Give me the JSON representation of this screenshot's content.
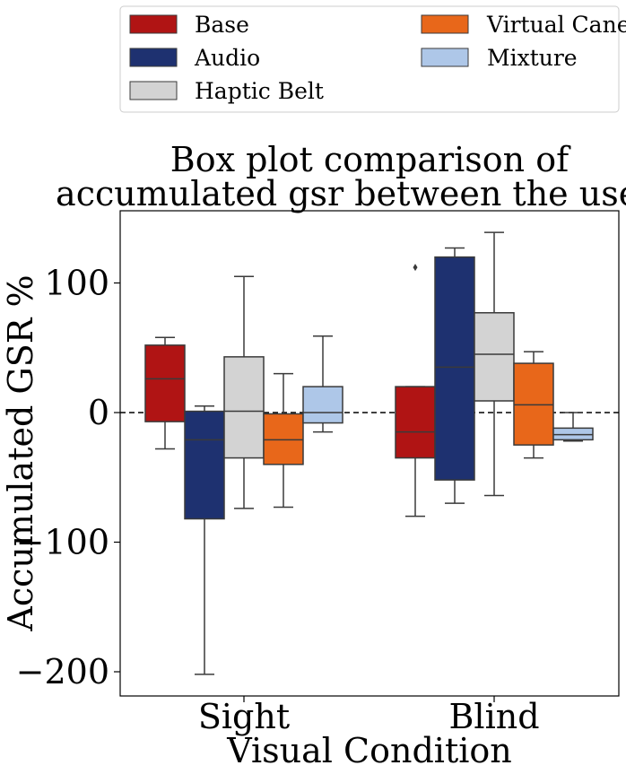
{
  "chart_data": {
    "type": "box",
    "title": [
      "Box plot comparison of",
      "accumulated gsr between the users."
    ],
    "xlabel": "Visual Condition",
    "ylabel": "Accumulated GSR %",
    "categories": [
      "Sight",
      "Blind"
    ],
    "ylim": [
      -220,
      157
    ],
    "yticks": [
      100,
      0,
      -100,
      -200
    ],
    "ytick_labels": [
      "100",
      "0",
      "−100",
      "−200"
    ],
    "grid": false,
    "reference_line": {
      "y": 0,
      "style": "dashed"
    },
    "legend": {
      "placement": "top",
      "columns": 2
    },
    "series": [
      {
        "name": "Base",
        "color": "#b01414",
        "boxes": [
          {
            "whisker_low": -28,
            "q1": -7,
            "median": 26,
            "q3": 52,
            "whisker_high": 58,
            "outliers": []
          },
          {
            "whisker_low": -80,
            "q1": -35,
            "median": -15,
            "q3": 20,
            "whisker_high": 20,
            "outliers": [
              112
            ]
          }
        ]
      },
      {
        "name": "Audio",
        "color": "#1e3170",
        "boxes": [
          {
            "whisker_low": -202,
            "q1": -82,
            "median": -21,
            "q3": 1,
            "whisker_high": 5,
            "outliers": []
          },
          {
            "whisker_low": -70,
            "q1": -52,
            "median": 35,
            "q3": 120,
            "whisker_high": 127,
            "outliers": []
          }
        ]
      },
      {
        "name": "Haptic Belt",
        "color": "#d3d3d3",
        "boxes": [
          {
            "whisker_low": -74,
            "q1": -35,
            "median": 1,
            "q3": 43,
            "whisker_high": 105,
            "outliers": []
          },
          {
            "whisker_low": -64,
            "q1": 9,
            "median": 45,
            "q3": 77,
            "whisker_high": 139,
            "outliers": []
          }
        ]
      },
      {
        "name": "Virtual Cane",
        "color": "#e8671a",
        "boxes": [
          {
            "whisker_low": -73,
            "q1": -40,
            "median": -21,
            "q3": -1,
            "whisker_high": 30,
            "outliers": []
          },
          {
            "whisker_low": -35,
            "q1": -25,
            "median": 6,
            "q3": 38,
            "whisker_high": 47,
            "outliers": []
          }
        ]
      },
      {
        "name": "Mixture",
        "color": "#aec7e8",
        "boxes": [
          {
            "whisker_low": -15,
            "q1": -8,
            "median": 0,
            "q3": 20,
            "whisker_high": 59,
            "outliers": []
          },
          {
            "whisker_low": -22,
            "q1": -21,
            "median": -17,
            "q3": -12,
            "whisker_high": 0,
            "outliers": []
          }
        ]
      }
    ]
  }
}
